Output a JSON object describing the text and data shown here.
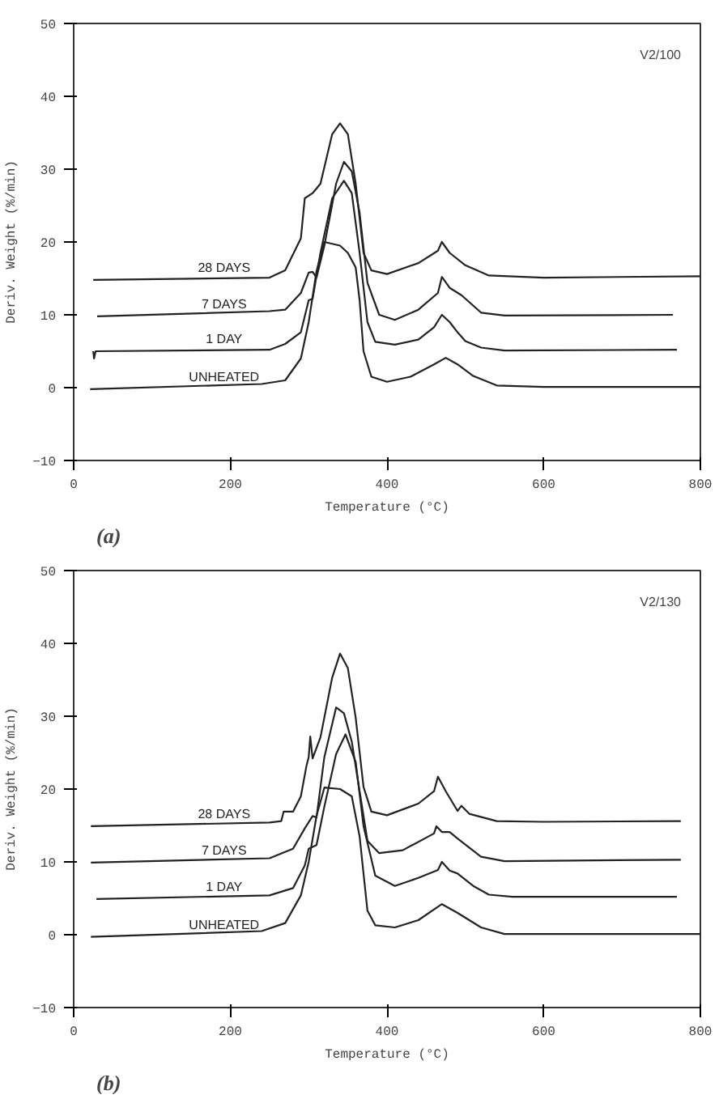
{
  "chart_data": [
    {
      "type": "line",
      "xlabel": "Temperature (°C)",
      "ylabel": "Deriv. Weight (%/min)",
      "annotations": [
        "V2/100",
        "(a)"
      ],
      "xlim": [
        0,
        800
      ],
      "ylim": [
        -10,
        50
      ],
      "xticks": [
        0,
        200,
        400,
        600,
        800
      ],
      "yticks": [
        -10,
        0,
        10,
        20,
        30,
        40,
        50
      ],
      "grid": false,
      "line_style": "solid",
      "marker": "none",
      "series": [
        {
          "name": "UNHEATED",
          "color": "#222222",
          "x": [
            21,
            240,
            270,
            290,
            300,
            310,
            320,
            340,
            350,
            360,
            365,
            370,
            380,
            400,
            430,
            460,
            475,
            490,
            510,
            540,
            600,
            800
          ],
          "values": [
            -0.2,
            0.5,
            1.0,
            4,
            9,
            16,
            20,
            19.5,
            18.5,
            16.5,
            12,
            5,
            1.5,
            0.8,
            1.5,
            3.2,
            4.1,
            3.2,
            1.6,
            0.3,
            0.1,
            0.1
          ]
        },
        {
          "name": "1 DAY",
          "color": "#222222",
          "x": [
            25,
            26,
            28,
            250,
            270,
            290,
            300,
            305,
            315,
            330,
            345,
            355,
            365,
            375,
            385,
            410,
            440,
            460,
            470,
            480,
            490,
            500,
            520,
            550,
            770
          ],
          "values": [
            5.0,
            4.0,
            5.0,
            5.2,
            6,
            7.6,
            12,
            12.2,
            18.5,
            26,
            28.4,
            26.7,
            18.5,
            9,
            6.3,
            5.9,
            6.6,
            8.3,
            10,
            9,
            7.6,
            6.4,
            5.5,
            5.1,
            5.2
          ]
        },
        {
          "name": "7 DAYS",
          "color": "#222222",
          "x": [
            30,
            250,
            270,
            290,
            300,
            305,
            310,
            320,
            335,
            345,
            355,
            365,
            375,
            390,
            410,
            440,
            465,
            470,
            480,
            495,
            520,
            550,
            765
          ],
          "values": [
            9.8,
            10.5,
            10.7,
            13,
            15.8,
            15.9,
            15.1,
            19.5,
            28,
            31,
            29.7,
            24,
            14.4,
            10,
            9.3,
            10.7,
            13,
            15.2,
            13.7,
            12.7,
            10.3,
            9.9,
            10
          ]
        },
        {
          "name": "28 DAYS",
          "color": "#222222",
          "x": [
            25,
            250,
            270,
            290,
            295,
            305,
            315,
            330,
            340,
            350,
            360,
            370,
            380,
            400,
            440,
            465,
            470,
            480,
            500,
            530,
            600,
            800
          ],
          "values": [
            14.8,
            15.1,
            16.1,
            20.5,
            26,
            26.7,
            28,
            34.8,
            36.3,
            34.8,
            28,
            18.5,
            16.1,
            15.6,
            17.1,
            18.8,
            20,
            18.5,
            16.8,
            15.4,
            15.1,
            15.3
          ]
        }
      ]
    },
    {
      "type": "line",
      "xlabel": "Temperature (°C)",
      "ylabel": "Deriv. Weight (%/min)",
      "annotations": [
        "V2/130",
        "(b)"
      ],
      "xlim": [
        0,
        800
      ],
      "ylim": [
        -10,
        50
      ],
      "xticks": [
        0,
        200,
        400,
        600,
        800
      ],
      "yticks": [
        -10,
        0,
        10,
        20,
        30,
        40,
        50
      ],
      "grid": false,
      "line_style": "solid",
      "marker": "none",
      "series": [
        {
          "name": "UNHEATED",
          "color": "#222222",
          "x": [
            22,
            240,
            270,
            290,
            300,
            310,
            320,
            340,
            355,
            365,
            375,
            385,
            410,
            440,
            470,
            490,
            520,
            550,
            800
          ],
          "values": [
            -0.3,
            0.5,
            1.6,
            5.4,
            10,
            16.3,
            20.2,
            20,
            19,
            13.5,
            3.3,
            1.3,
            1,
            2,
            4.2,
            3,
            1,
            0.1,
            0.1
          ]
        },
        {
          "name": "1 DAY",
          "color": "#222222",
          "x": [
            29,
            250,
            280,
            295,
            300,
            310,
            320,
            335,
            347,
            360,
            370,
            385,
            410,
            440,
            465,
            470,
            480,
            490,
            510,
            530,
            560,
            770
          ],
          "values": [
            4.9,
            5.4,
            6.4,
            9.5,
            11.8,
            12.3,
            17.6,
            24.8,
            27.5,
            23.7,
            14.9,
            8.1,
            6.7,
            7.8,
            8.9,
            10,
            8.8,
            8.4,
            6.7,
            5.5,
            5.2,
            5.2
          ]
        },
        {
          "name": "7 DAYS",
          "color": "#222222",
          "x": [
            22,
            250,
            280,
            295,
            305,
            310,
            320,
            335,
            345,
            355,
            365,
            375,
            390,
            420,
            460,
            463,
            470,
            480,
            490,
            520,
            550,
            775
          ],
          "values": [
            9.9,
            10.5,
            11.8,
            14.6,
            16.3,
            16.1,
            24.4,
            31.2,
            30.4,
            26.5,
            19.7,
            12.9,
            11.2,
            11.6,
            13.9,
            14.9,
            14.1,
            14.1,
            13.2,
            10.7,
            10.1,
            10.3
          ]
        },
        {
          "name": "28 DAYS",
          "color": "#222222",
          "x": [
            22,
            250,
            265,
            268,
            280,
            290,
            297,
            300,
            302,
            305,
            315,
            330,
            340,
            350,
            360,
            370,
            380,
            400,
            440,
            460,
            465,
            475,
            490,
            495,
            505,
            540,
            600,
            775
          ],
          "values": [
            14.9,
            15.4,
            15.6,
            16.9,
            16.9,
            19,
            23.1,
            24.4,
            27.2,
            24.2,
            27.1,
            35.3,
            38.6,
            36.6,
            29.8,
            20.3,
            16.9,
            16.4,
            18,
            19.7,
            21.7,
            19.7,
            17,
            17.7,
            16.6,
            15.6,
            15.5,
            15.6
          ]
        }
      ]
    }
  ]
}
